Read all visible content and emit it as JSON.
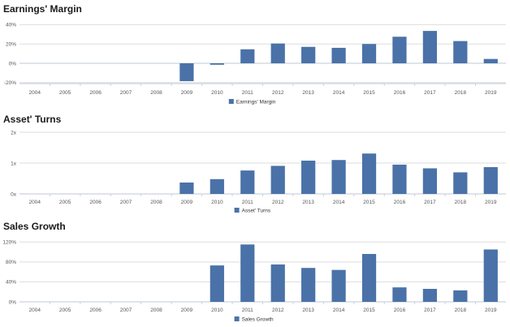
{
  "chart_data": [
    {
      "type": "bar",
      "title": "Earnings' Margin",
      "categories": [
        "2004",
        "2005",
        "2006",
        "2007",
        "2008",
        "2009",
        "2010",
        "2011",
        "2012",
        "2013",
        "2014",
        "2015",
        "2016",
        "2017",
        "2018",
        "2019"
      ],
      "series": [
        {
          "name": "Earnings' Margin",
          "values": [
            null,
            null,
            null,
            null,
            null,
            -18.5,
            -1.5,
            14.5,
            20.5,
            17,
            16,
            20,
            27.5,
            33.5,
            23,
            4.5
          ]
        }
      ],
      "yticks": [
        -20,
        0,
        20,
        40
      ],
      "ytick_labels": [
        "-20%",
        "0%",
        "20%",
        "40%"
      ],
      "ylim": [
        -21,
        42
      ],
      "grid": true,
      "legend_position": "bottom-center",
      "color": "#4a72a8"
    },
    {
      "type": "bar",
      "title": "Asset' Turns",
      "categories": [
        "2004",
        "2005",
        "2006",
        "2007",
        "2008",
        "2009",
        "2010",
        "2011",
        "2012",
        "2013",
        "2014",
        "2015",
        "2016",
        "2017",
        "2018",
        "2019"
      ],
      "series": [
        {
          "name": "Asset' Turns",
          "values": [
            null,
            null,
            null,
            null,
            null,
            0.37,
            0.48,
            0.76,
            0.91,
            1.08,
            1.1,
            1.31,
            0.95,
            0.83,
            0.7,
            0.87
          ]
        }
      ],
      "yticks": [
        0,
        1,
        2
      ],
      "ytick_labels": [
        "0x",
        "1x",
        "2x"
      ],
      "ylim": [
        0,
        2
      ],
      "grid": true,
      "legend_position": "bottom-center",
      "color": "#4a72a8"
    },
    {
      "type": "bar",
      "title": "Sales Growth",
      "categories": [
        "2004",
        "2005",
        "2006",
        "2007",
        "2008",
        "2009",
        "2010",
        "2011",
        "2012",
        "2013",
        "2014",
        "2015",
        "2016",
        "2017",
        "2018",
        "2019"
      ],
      "series": [
        {
          "name": "Sales Growth",
          "values": [
            null,
            null,
            null,
            null,
            null,
            null,
            73,
            115,
            75,
            68,
            64,
            96,
            29,
            26,
            23,
            105
          ]
        }
      ],
      "yticks": [
        0,
        40,
        80,
        120
      ],
      "ytick_labels": [
        "0%",
        "40%",
        "80%",
        "120%"
      ],
      "ylim": [
        0,
        122
      ],
      "grid": true,
      "legend_position": "bottom-center",
      "color": "#4a72a8"
    }
  ]
}
